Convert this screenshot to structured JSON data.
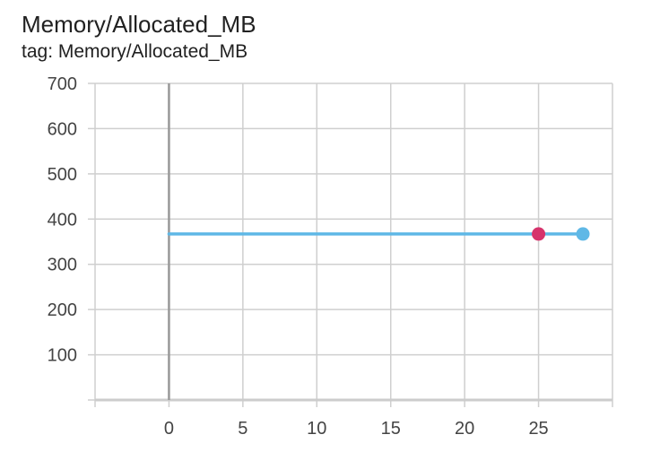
{
  "card": {
    "title": "Memory/Allocated_MB",
    "tag": "tag: Memory/Allocated_MB"
  },
  "chart_data": {
    "type": "line",
    "title": "Memory/Allocated_MB",
    "xlabel": "",
    "ylabel": "",
    "xlim": [
      -5,
      30
    ],
    "ylim": [
      0,
      700
    ],
    "x_ticks": [
      0,
      5,
      10,
      15,
      20,
      25
    ],
    "y_ticks": [
      100,
      200,
      300,
      400,
      500,
      600,
      700
    ],
    "grid": true,
    "series": [
      {
        "color": "#5fb8e6",
        "x": [
          0,
          28
        ],
        "y": [
          367,
          367
        ]
      }
    ],
    "highlight_points": [
      {
        "x": 25,
        "y": 367,
        "color": "#d6336c"
      },
      {
        "x": 28,
        "y": 367,
        "color": "#5fb8e6"
      }
    ]
  }
}
